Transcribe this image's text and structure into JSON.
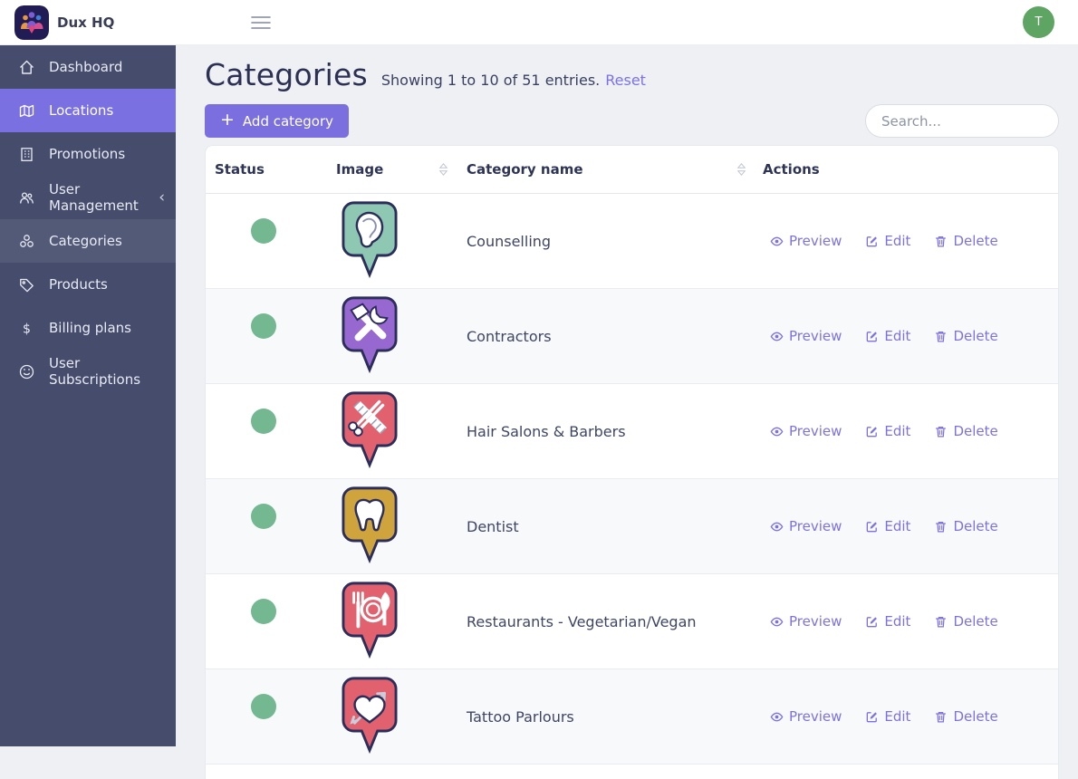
{
  "app": {
    "name": "Dux HQ",
    "avatar_initial": "T",
    "avatar_color": "#5ea462"
  },
  "sidebar": {
    "items": [
      {
        "label": "Dashboard",
        "icon": "home",
        "state": "",
        "has_submenu": false
      },
      {
        "label": "Locations",
        "icon": "map",
        "state": "active",
        "has_submenu": false
      },
      {
        "label": "Promotions",
        "icon": "building",
        "state": "",
        "has_submenu": false
      },
      {
        "label": "User Management",
        "icon": "users",
        "state": "",
        "has_submenu": true,
        "chevron": "‹"
      },
      {
        "label": "Categories",
        "icon": "categories",
        "state": "current",
        "has_submenu": false
      },
      {
        "label": "Products",
        "icon": "tag",
        "state": "",
        "has_submenu": false
      },
      {
        "label": "Billing plans",
        "icon": "dollar",
        "state": "",
        "has_submenu": false
      },
      {
        "label": "User Subscriptions",
        "icon": "smiley",
        "state": "",
        "has_submenu": false
      }
    ]
  },
  "page": {
    "title": "Categories",
    "summary": "Showing 1 to 10 of 51 entries.",
    "reset_label": "Reset",
    "add_button_label": "Add category",
    "add_button_plus": "+",
    "search_placeholder": "Search..."
  },
  "table": {
    "columns": [
      {
        "label": "Status",
        "sortable": false
      },
      {
        "label": "Image",
        "sortable": true
      },
      {
        "label": "Category name",
        "sortable": true
      },
      {
        "label": "Actions",
        "sortable": false
      }
    ],
    "actions": [
      {
        "label": "Preview",
        "icon": "eye-icon"
      },
      {
        "label": "Edit",
        "icon": "edit-icon"
      },
      {
        "label": "Delete",
        "icon": "trash-icon"
      }
    ],
    "rows": [
      {
        "status": "active",
        "status_color": "#74b892",
        "icon": "ear",
        "pin_color": "#8ec7b2",
        "name": "Counselling"
      },
      {
        "status": "active",
        "status_color": "#74b892",
        "icon": "tools",
        "pin_color": "#9768cf",
        "name": "Contractors"
      },
      {
        "status": "active",
        "status_color": "#74b892",
        "icon": "salon",
        "pin_color": "#e2616f",
        "name": "Hair Salons & Barbers"
      },
      {
        "status": "active",
        "status_color": "#74b892",
        "icon": "tooth",
        "pin_color": "#d0a43c",
        "name": "Dentist"
      },
      {
        "status": "active",
        "status_color": "#74b892",
        "icon": "restaurant",
        "pin_color": "#e2616f",
        "name": "Restaurants - Vegetarian/Vegan"
      },
      {
        "status": "active",
        "status_color": "#74b892",
        "icon": "heart",
        "pin_color": "#e2616f",
        "name": "Tattoo Parlours"
      }
    ]
  },
  "colors": {
    "brand_purple": "#7b6fe0",
    "sidebar_bg": "#464d6c",
    "active_item": "#7b70e2",
    "status_green": "#74b892",
    "link_purple": "#7c72e3"
  }
}
